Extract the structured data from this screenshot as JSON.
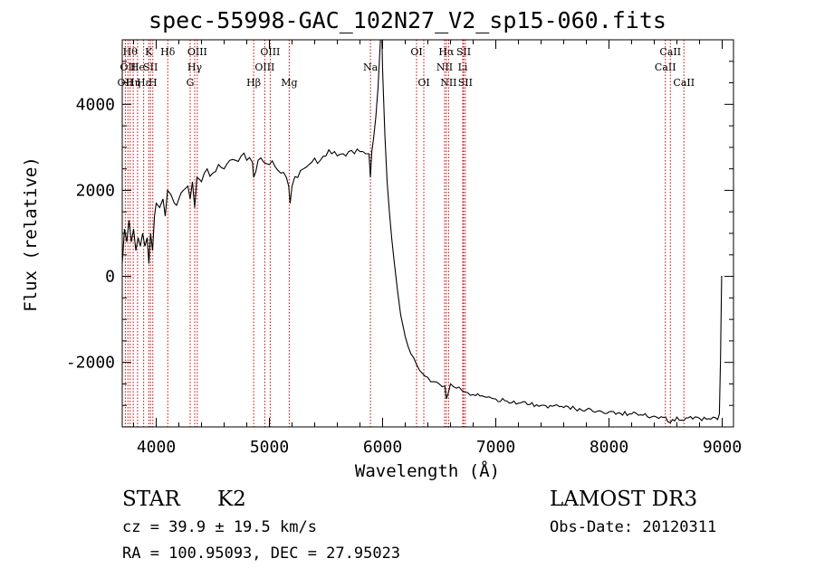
{
  "title": "spec-55998-GAC_102N27_V2_sp15-060.fits",
  "info": {
    "object_class": "STAR",
    "subclass": "K2",
    "survey": "LAMOST DR3",
    "cz": "cz = 39.9 ± 19.5 km/s",
    "obs_date": "Obs-Date: 20120311",
    "ra_dec": "RA = 100.95093, DEC =  27.95023"
  },
  "chart_data": {
    "type": "line",
    "title": "spec-55998-GAC_102N27_V2_sp15-060.fits",
    "xlabel": "Wavelength (Å)",
    "ylabel": "Flux (relative)",
    "xlim": [
      3700,
      9100
    ],
    "ylim": [
      -3500,
      5500
    ],
    "x_ticks": [
      4000,
      5000,
      6000,
      7000,
      8000,
      9000
    ],
    "y_ticks": [
      -2000,
      0,
      2000,
      4000
    ],
    "grid": false,
    "colors": {
      "line": "#000000",
      "markers": "#cc0000"
    },
    "series": [
      {
        "name": "spectrum",
        "x": [
          3700,
          3720,
          3740,
          3760,
          3780,
          3800,
          3820,
          3840,
          3860,
          3880,
          3900,
          3920,
          3935,
          3950,
          3968,
          3985,
          4000,
          4030,
          4060,
          4080,
          4100,
          4130,
          4160,
          4200,
          4240,
          4280,
          4300,
          4320,
          4340,
          4360,
          4400,
          4450,
          4500,
          4550,
          4600,
          4650,
          4700,
          4750,
          4800,
          4850,
          4861,
          4900,
          4950,
          5000,
          5050,
          5100,
          5150,
          5170,
          5183,
          5200,
          5250,
          5300,
          5350,
          5400,
          5450,
          5500,
          5550,
          5600,
          5650,
          5700,
          5750,
          5800,
          5850,
          5880,
          5892,
          5905,
          5920,
          5940,
          5960,
          5975,
          5990,
          6000,
          6020,
          6040,
          6060,
          6080,
          6100,
          6130,
          6160,
          6200,
          6250,
          6300,
          6350,
          6400,
          6450,
          6500,
          6550,
          6563,
          6600,
          6650,
          6700,
          6750,
          6800,
          6900,
          7000,
          7100,
          7200,
          7300,
          7400,
          7500,
          7600,
          7700,
          7800,
          7900,
          8000,
          8100,
          8200,
          8300,
          8400,
          8500,
          8542,
          8600,
          8662,
          8700,
          8800,
          8900,
          8960,
          8975,
          8985,
          8995,
          9000
        ],
        "y": [
          300,
          1100,
          800,
          1300,
          800,
          1100,
          600,
          900,
          700,
          1000,
          700,
          900,
          300,
          1000,
          600,
          1400,
          1700,
          1600,
          1800,
          1400,
          2000,
          1900,
          1700,
          1800,
          2000,
          2100,
          1800,
          2200,
          1600,
          2300,
          2200,
          2500,
          2400,
          2600,
          2500,
          2700,
          2700,
          2800,
          2700,
          2650,
          2300,
          2700,
          2650,
          2600,
          2550,
          2400,
          2300,
          2100,
          1700,
          2100,
          2300,
          2500,
          2600,
          2750,
          2700,
          2800,
          2850,
          2800,
          2850,
          2900,
          2850,
          2900,
          2850,
          2850,
          2300,
          2900,
          3200,
          3700,
          4400,
          5200,
          6000,
          4800,
          3300,
          2200,
          1500,
          900,
          400,
          -300,
          -900,
          -1400,
          -1800,
          -2050,
          -2250,
          -2350,
          -2450,
          -2500,
          -2550,
          -2850,
          -2500,
          -2600,
          -2650,
          -2700,
          -2750,
          -2800,
          -2850,
          -2900,
          -2950,
          -2980,
          -3000,
          -3020,
          -3050,
          -3080,
          -3100,
          -3130,
          -3150,
          -3180,
          -3200,
          -3230,
          -3250,
          -3270,
          -3400,
          -3270,
          -3350,
          -3290,
          -3300,
          -3320,
          -3330,
          -3200,
          -2000,
          0,
          0
        ]
      }
    ],
    "line_markers": [
      {
        "wavelength": 3727,
        "label": "OII",
        "row": 2
      },
      {
        "wavelength": 3750,
        "label": "OII",
        "row": 1
      },
      {
        "wavelength": 3770,
        "label": "Hθ",
        "row": 0
      },
      {
        "wavelength": 3797,
        "label": "Hη",
        "row": 2
      },
      {
        "wavelength": 3835,
        "label": "He",
        "row": 1
      },
      {
        "wavelength": 3889,
        "label": "Hε",
        "row": 2
      },
      {
        "wavelength": 3934,
        "label": "K",
        "row": 0
      },
      {
        "wavelength": 3950,
        "label": "SII",
        "row": 1
      },
      {
        "wavelength": 3970,
        "label": "H",
        "row": 2
      },
      {
        "wavelength": 4102,
        "label": "Hδ",
        "row": 0
      },
      {
        "wavelength": 4300,
        "label": "G",
        "row": 2
      },
      {
        "wavelength": 4340,
        "label": "Hγ",
        "row": 1
      },
      {
        "wavelength": 4363,
        "label": "OIII",
        "row": 0
      },
      {
        "wavelength": 4861,
        "label": "Hβ",
        "row": 2
      },
      {
        "wavelength": 4959,
        "label": "OIII",
        "row": 1
      },
      {
        "wavelength": 5007,
        "label": "OIII",
        "row": 0
      },
      {
        "wavelength": 5175,
        "label": "Mg",
        "row": 2
      },
      {
        "wavelength": 5893,
        "label": "Na",
        "row": 1
      },
      {
        "wavelength": 6300,
        "label": "OI",
        "row": 0
      },
      {
        "wavelength": 6364,
        "label": "OI",
        "row": 2
      },
      {
        "wavelength": 6548,
        "label": "NII",
        "row": 1
      },
      {
        "wavelength": 6563,
        "label": "Hα",
        "row": 0
      },
      {
        "wavelength": 6583,
        "label": "NII",
        "row": 2
      },
      {
        "wavelength": 6708,
        "label": "Li",
        "row": 1
      },
      {
        "wavelength": 6716,
        "label": "SII",
        "row": 0
      },
      {
        "wavelength": 6731,
        "label": "SII",
        "row": 2
      },
      {
        "wavelength": 8498,
        "label": "CaII",
        "row": 1
      },
      {
        "wavelength": 8542,
        "label": "CaII",
        "row": 0
      },
      {
        "wavelength": 8662,
        "label": "CaII",
        "row": 2
      }
    ]
  }
}
